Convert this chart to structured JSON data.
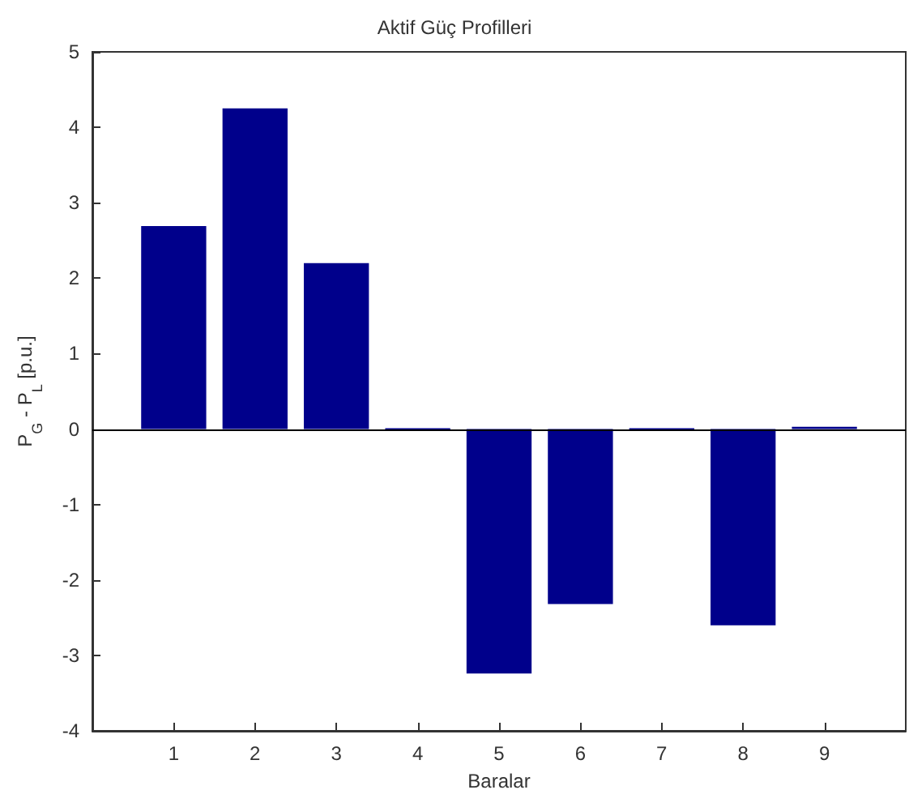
{
  "chart_data": {
    "type": "bar",
    "title": "Aktif Güç Profilleri",
    "xlabel": "Baralar",
    "ylabel": "P$_{G}$ - P$_{L}$ [p.u.]",
    "x": [
      1,
      2,
      3,
      4,
      5,
      6,
      7,
      8,
      9
    ],
    "values": [
      2.69,
      4.25,
      2.2,
      0,
      -3.24,
      -2.32,
      0,
      -2.6,
      0.03
    ],
    "color": "#00008b",
    "xlim": [
      0,
      10
    ],
    "xticks": [
      1,
      2,
      3,
      4,
      5,
      6,
      7,
      8,
      9
    ],
    "ylim": [
      -4,
      5
    ],
    "yticks": [
      -4,
      -3,
      -2,
      -1,
      0,
      1,
      2,
      3,
      4,
      5
    ],
    "ref_lines": [
      {
        "axis": "y",
        "value": 0,
        "color": "#000000"
      }
    ],
    "grid": false
  }
}
